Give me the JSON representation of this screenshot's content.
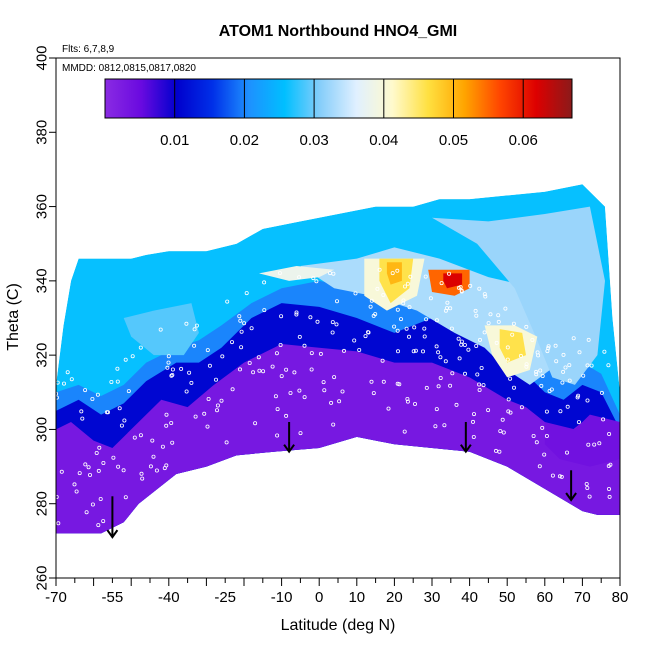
{
  "chart_data": {
    "type": "heatmap",
    "title": "ATOM1 Northbound HNO4_GMI",
    "flights_note": "Flts: 6,7,8,9",
    "dates_note": "MMDD: 0812,0815,0817,0820",
    "xlabel": "Latitude (deg N)",
    "ylabel": "Theta (C)",
    "xlim": [
      -70,
      80
    ],
    "ylim": [
      260,
      400
    ],
    "x_ticks": [
      -70,
      -55,
      -40,
      -25,
      -10,
      0,
      10,
      20,
      30,
      40,
      50,
      60,
      70,
      80
    ],
    "y_ticks": [
      260,
      280,
      300,
      320,
      340,
      360,
      380,
      400
    ],
    "colorbar": {
      "range": [
        0,
        0.067
      ],
      "ticks": [
        0.01,
        0.02,
        0.03,
        0.04,
        0.05,
        0.06
      ],
      "tick_labels": [
        "0.01",
        "0.02",
        "0.03",
        "0.04",
        "0.05",
        "0.06"
      ],
      "colors": [
        "#8a2be2",
        "#6a0ae0",
        "#0000cd",
        "#0030e8",
        "#1e90ff",
        "#00bfff",
        "#87cefa",
        "#e0f0ff",
        "#fffacd",
        "#ffe040",
        "#ffa500",
        "#ff4500",
        "#dd0000",
        "#8b1a1a"
      ]
    },
    "domain_top": [
      [
        -70,
        312
      ],
      [
        -68,
        328
      ],
      [
        -66,
        340
      ],
      [
        -64,
        346
      ],
      [
        -50,
        346
      ],
      [
        -46,
        347
      ],
      [
        -40,
        348
      ],
      [
        -30,
        348
      ],
      [
        -22,
        350
      ],
      [
        -15,
        354
      ],
      [
        -5,
        356
      ],
      [
        5,
        358
      ],
      [
        15,
        360
      ],
      [
        25,
        360
      ],
      [
        32,
        362
      ],
      [
        40,
        362
      ],
      [
        50,
        363
      ],
      [
        60,
        364
      ],
      [
        70,
        366
      ],
      [
        76,
        360
      ],
      [
        78,
        330
      ],
      [
        80,
        310
      ]
    ],
    "domain_bottom": [
      [
        -70,
        272
      ],
      [
        -58,
        272
      ],
      [
        -52,
        275
      ],
      [
        -48,
        280
      ],
      [
        -38,
        288
      ],
      [
        -30,
        290
      ],
      [
        -22,
        293
      ],
      [
        -12,
        294
      ],
      [
        0,
        295
      ],
      [
        10,
        298
      ],
      [
        20,
        296
      ],
      [
        30,
        295
      ],
      [
        40,
        294
      ],
      [
        50,
        290
      ],
      [
        60,
        284
      ],
      [
        70,
        278
      ],
      [
        74,
        277
      ],
      [
        80,
        277
      ]
    ],
    "level_bands": [
      {
        "value": 0.003,
        "top": [
          [
            -70,
            300
          ],
          [
            -66,
            302
          ],
          [
            -60,
            297
          ],
          [
            -55,
            295
          ],
          [
            -50,
            300
          ],
          [
            -42,
            308
          ],
          [
            -35,
            306
          ],
          [
            -28,
            312
          ],
          [
            -20,
            318
          ],
          [
            -10,
            323
          ],
          [
            0,
            322
          ],
          [
            10,
            321
          ],
          [
            20,
            318
          ],
          [
            30,
            318
          ],
          [
            40,
            314
          ],
          [
            50,
            308
          ],
          [
            55,
            306
          ],
          [
            60,
            302
          ],
          [
            65,
            298
          ],
          [
            70,
            302
          ],
          [
            75,
            300
          ],
          [
            80,
            292
          ]
        ]
      },
      {
        "value": 0.011,
        "top": [
          [
            -70,
            305
          ],
          [
            -64,
            308
          ],
          [
            -58,
            304
          ],
          [
            -52,
            307
          ],
          [
            -46,
            313
          ],
          [
            -38,
            318
          ],
          [
            -32,
            318
          ],
          [
            -26,
            322
          ],
          [
            -18,
            330
          ],
          [
            -10,
            334
          ],
          [
            0,
            333
          ],
          [
            10,
            330
          ],
          [
            20,
            326
          ],
          [
            30,
            330
          ],
          [
            40,
            327
          ],
          [
            50,
            318
          ],
          [
            55,
            315
          ],
          [
            60,
            310
          ],
          [
            65,
            308
          ],
          [
            70,
            312
          ],
          [
            75,
            310
          ],
          [
            80,
            300
          ]
        ]
      },
      {
        "value": 0.02,
        "top": [
          [
            -70,
            310
          ],
          [
            -64,
            312
          ],
          [
            -58,
            309
          ],
          [
            -52,
            312
          ],
          [
            -46,
            318
          ],
          [
            -38,
            322
          ],
          [
            -32,
            324
          ],
          [
            -26,
            328
          ],
          [
            -18,
            334
          ],
          [
            -10,
            338
          ],
          [
            0,
            340
          ],
          [
            10,
            338
          ],
          [
            20,
            336
          ],
          [
            30,
            336
          ],
          [
            40,
            333
          ],
          [
            50,
            325
          ],
          [
            55,
            320
          ],
          [
            60,
            318
          ],
          [
            65,
            315
          ],
          [
            70,
            318
          ],
          [
            75,
            315
          ],
          [
            80,
            304
          ]
        ]
      }
    ],
    "patches": [
      {
        "value": 0.029,
        "points": [
          [
            -52,
            330
          ],
          [
            -44,
            332
          ],
          [
            -34,
            334
          ],
          [
            -32,
            326
          ],
          [
            -36,
            320
          ],
          [
            -44,
            320
          ],
          [
            -50,
            325
          ]
        ]
      },
      {
        "value": 0.033,
        "points": [
          [
            -5,
            344
          ],
          [
            10,
            346
          ],
          [
            20,
            349
          ],
          [
            32,
            346
          ],
          [
            45,
            341
          ],
          [
            58,
            338
          ],
          [
            66,
            336
          ],
          [
            70,
            328
          ],
          [
            64,
            318
          ],
          [
            56,
            312
          ],
          [
            50,
            316
          ],
          [
            44,
            322
          ],
          [
            36,
            326
          ],
          [
            26,
            332
          ],
          [
            14,
            336
          ],
          [
            4,
            338
          ]
        ]
      },
      {
        "value": 0.032,
        "points": [
          [
            30,
            357
          ],
          [
            45,
            356
          ],
          [
            60,
            358
          ],
          [
            72,
            360
          ],
          [
            76,
            340
          ],
          [
            74,
            320
          ],
          [
            68,
            312
          ],
          [
            62,
            314
          ],
          [
            58,
            324
          ],
          [
            52,
            338
          ],
          [
            42,
            350
          ]
        ]
      },
      {
        "value": 0.038,
        "points": [
          [
            -16,
            342
          ],
          [
            -6,
            344
          ],
          [
            4,
            343
          ],
          [
            0,
            341
          ],
          [
            -8,
            340
          ]
        ]
      },
      {
        "value": 0.04,
        "points": [
          [
            12,
            346
          ],
          [
            28,
            346
          ],
          [
            26,
            336
          ],
          [
            18,
            332
          ],
          [
            12,
            336
          ]
        ]
      },
      {
        "value": 0.046,
        "points": [
          [
            16,
            346
          ],
          [
            25,
            346
          ],
          [
            24,
            338
          ],
          [
            19,
            334
          ],
          [
            16,
            340
          ]
        ]
      },
      {
        "value": 0.05,
        "points": [
          [
            18,
            345
          ],
          [
            22,
            345
          ],
          [
            22,
            340
          ],
          [
            19,
            339
          ],
          [
            18,
            342
          ]
        ]
      },
      {
        "value": 0.04,
        "points": [
          [
            44,
            328
          ],
          [
            52,
            328
          ],
          [
            58,
            325
          ],
          [
            56,
            316
          ],
          [
            50,
            314
          ],
          [
            46,
            320
          ]
        ]
      },
      {
        "value": 0.046,
        "points": [
          [
            48,
            327
          ],
          [
            54,
            326
          ],
          [
            55,
            320
          ],
          [
            50,
            318
          ],
          [
            48,
            322
          ]
        ]
      },
      {
        "value": 0.055,
        "points": [
          [
            29,
            343
          ],
          [
            40,
            343
          ],
          [
            40,
            338
          ],
          [
            36,
            336
          ],
          [
            30,
            337
          ]
        ]
      },
      {
        "value": 0.062,
        "points": [
          [
            33,
            342
          ],
          [
            38,
            342
          ],
          [
            38,
            339
          ],
          [
            34,
            338
          ],
          [
            33,
            340
          ]
        ]
      },
      {
        "value": 0.004,
        "points": [
          [
            60,
            302
          ],
          [
            68,
            300
          ],
          [
            72,
            304
          ],
          [
            80,
            302
          ],
          [
            80,
            292
          ],
          [
            72,
            290
          ],
          [
            64,
            292
          ],
          [
            60,
            296
          ]
        ]
      }
    ],
    "sample_points": {
      "latitude_range": [
        -70,
        78
      ],
      "count": 330,
      "note": "measurement locations (white circles) along flight tracks"
    },
    "arrows": [
      {
        "lat": -55,
        "theta_from": 282,
        "theta_to": 271
      },
      {
        "lat": -8,
        "theta_from": 302,
        "theta_to": 294
      },
      {
        "lat": 39,
        "theta_from": 302,
        "theta_to": 294
      },
      {
        "lat": 67,
        "theta_from": 289,
        "theta_to": 281
      }
    ]
  }
}
